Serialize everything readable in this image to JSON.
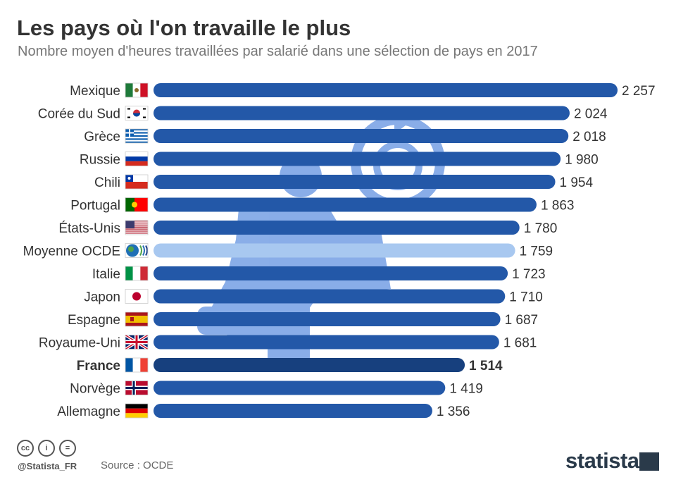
{
  "title": "Les pays où l'on travaille le plus",
  "subtitle": "Nombre moyen d'heures travaillées par salarié dans une sélection de pays en 2017",
  "footer": {
    "handle": "@Statista_FR",
    "source": "Source : OCDE",
    "brand": "statista"
  },
  "colors": {
    "bar": "#2358a8",
    "bar_average": "#a8c8f0",
    "bar_highlight": "#17407e",
    "text": "#333333",
    "watermark": "#2a6bd6"
  },
  "chart_data": {
    "type": "bar",
    "orientation": "horizontal",
    "categories": [
      "Mexique",
      "Corée du Sud",
      "Grèce",
      "Russie",
      "Chili",
      "Portugal",
      "États-Unis",
      "Moyenne OCDE",
      "Italie",
      "Japon",
      "Espagne",
      "Royaume-Uni",
      "France",
      "Norvège",
      "Allemagne"
    ],
    "labels": [
      "2 257",
      "2 024",
      "2 018",
      "1 980",
      "1 954",
      "1 863",
      "1 780",
      "1 759",
      "1 723",
      "1 710",
      "1 687",
      "1 681",
      "1 514",
      "1 419",
      "1 356"
    ],
    "values": [
      2257,
      2024,
      2018,
      1980,
      1954,
      1863,
      1780,
      1759,
      1723,
      1710,
      1687,
      1681,
      1514,
      1419,
      1356
    ],
    "flags": [
      "mexico-flag",
      "south-korea-flag",
      "greece-flag",
      "russia-flag",
      "chile-flag",
      "portugal-flag",
      "usa-flag",
      "oecd-logo",
      "italy-flag",
      "japan-flag",
      "spain-flag",
      "uk-flag",
      "france-flag",
      "norway-flag",
      "germany-flag"
    ],
    "highlight": "France",
    "average": "Moyenne OCDE",
    "xlim": [
      0,
      2257
    ],
    "grid": false,
    "legend": "none"
  }
}
